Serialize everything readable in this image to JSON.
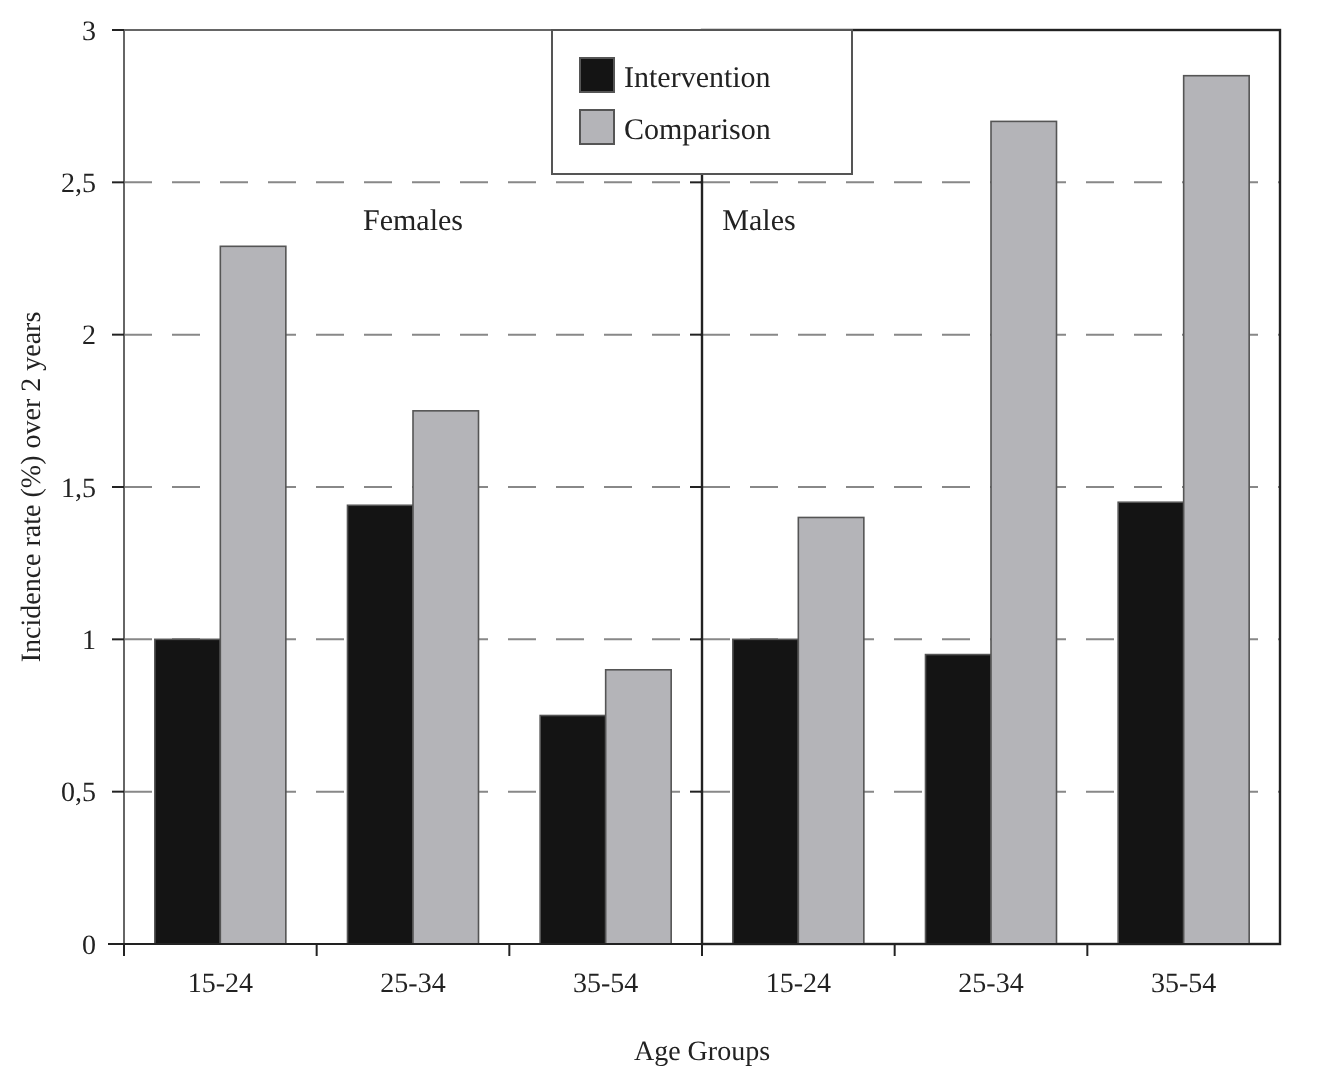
{
  "chart_data": [
    {
      "type": "bar",
      "xlabel": "Age Groups",
      "ylabel": "Incidence rate (%) over 2 years",
      "categories": [
        "15-24",
        "25-34",
        "35-54"
      ],
      "series": [
        {
          "color": "#141414",
          "values": [
            1.0,
            1.44,
            0.75
          ]
        },
        {
          "color": "#b4b4b8",
          "values": [
            2.29,
            1.75,
            0.9
          ]
        }
      ],
      "ylim": [
        0,
        3
      ],
      "yticks": [
        0,
        {
          "value": 0.5,
          "label": "0,5"
        },
        1,
        {
          "value": 1.5,
          "label": "1,5"
        },
        2,
        {
          "value": 2.5,
          "label": "2,5"
        },
        3
      ],
      "annotations": [
        "Females"
      ],
      "grid": "y"
    },
    {
      "type": "bar",
      "categories": [
        "15-24",
        "25-34",
        "35-54"
      ],
      "series": [
        {
          "name": "Intervention",
          "color": "#141414",
          "values": [
            1.0,
            0.95,
            1.45
          ]
        },
        {
          "name": "Comparison",
          "color": "#b4b4b8",
          "values": [
            1.4,
            2.7,
            2.85
          ]
        }
      ],
      "ylim": [
        0,
        3
      ],
      "yticks": [
        0,
        0.5,
        1,
        1.5,
        2,
        2.5,
        3
      ],
      "annotations": [
        "Males"
      ],
      "grid": "y",
      "tick_labels": "x",
      "legend": "top left"
    }
  ]
}
